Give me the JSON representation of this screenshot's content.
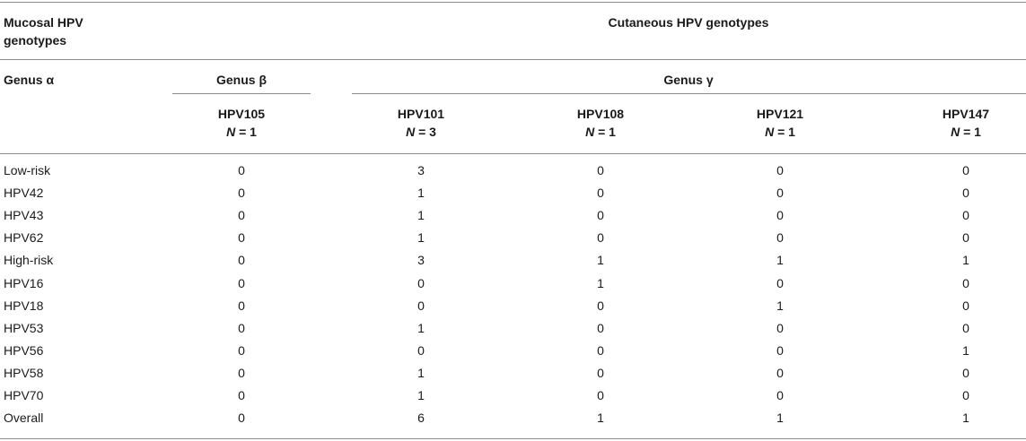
{
  "header": {
    "mucosal_line1": "Mucosal HPV",
    "mucosal_line2": "genotypes",
    "cutaneous": "Cutaneous HPV genotypes",
    "genus_alpha": "Genus α",
    "genus_beta": "Genus β",
    "genus_gamma": "Genus γ"
  },
  "columns": [
    {
      "name": "HPV105",
      "n_label": "N",
      "n_value": "= 1"
    },
    {
      "name": "HPV101",
      "n_label": "N",
      "n_value": "= 3"
    },
    {
      "name": "HPV108",
      "n_label": "N",
      "n_value": "= 1"
    },
    {
      "name": "HPV121",
      "n_label": "N",
      "n_value": "= 1"
    },
    {
      "name": "HPV147",
      "n_label": "N",
      "n_value": "= 1"
    }
  ],
  "rows": [
    {
      "label": "Low-risk",
      "values": [
        "0",
        "3",
        "0",
        "0",
        "0"
      ]
    },
    {
      "label": "HPV42",
      "values": [
        "0",
        "1",
        "0",
        "0",
        "0"
      ]
    },
    {
      "label": "HPV43",
      "values": [
        "0",
        "1",
        "0",
        "0",
        "0"
      ]
    },
    {
      "label": "HPV62",
      "values": [
        "0",
        "1",
        "0",
        "0",
        "0"
      ]
    },
    {
      "label": "High-risk",
      "values": [
        "0",
        "3",
        "1",
        "1",
        "1"
      ]
    },
    {
      "label": "HPV16",
      "values": [
        "0",
        "0",
        "1",
        "0",
        "0"
      ]
    },
    {
      "label": "HPV18",
      "values": [
        "0",
        "0",
        "0",
        "1",
        "0"
      ]
    },
    {
      "label": "HPV53",
      "values": [
        "0",
        "1",
        "0",
        "0",
        "0"
      ]
    },
    {
      "label": "HPV56",
      "values": [
        "0",
        "0",
        "0",
        "0",
        "1"
      ]
    },
    {
      "label": "HPV58",
      "values": [
        "0",
        "1",
        "0",
        "0",
        "0"
      ]
    },
    {
      "label": "HPV70",
      "values": [
        "0",
        "1",
        "0",
        "0",
        "0"
      ]
    },
    {
      "label": "Overall",
      "values": [
        "0",
        "6",
        "1",
        "1",
        "1"
      ]
    }
  ]
}
